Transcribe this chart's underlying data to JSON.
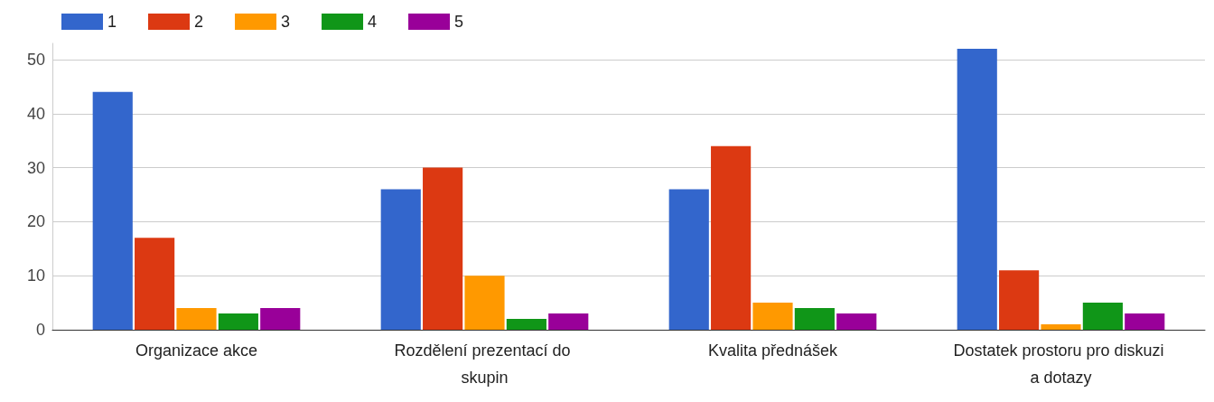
{
  "chart_data": {
    "type": "bar",
    "categories": [
      "Organizace akce",
      "Rozdělení prezentací do skupin",
      "Kvalita přednášek",
      "Dostatek prostoru pro diskuzi a dotazy"
    ],
    "series": [
      {
        "name": "1",
        "color": "#3366cc",
        "values": [
          44,
          26,
          26,
          52
        ]
      },
      {
        "name": "2",
        "color": "#dc3912",
        "values": [
          17,
          30,
          34,
          11
        ]
      },
      {
        "name": "3",
        "color": "#ff9900",
        "values": [
          4,
          10,
          5,
          1
        ]
      },
      {
        "name": "4",
        "color": "#109618",
        "values": [
          3,
          2,
          4,
          5
        ]
      },
      {
        "name": "5",
        "color": "#990099",
        "values": [
          4,
          3,
          3,
          3
        ]
      }
    ],
    "ylim": [
      0,
      53
    ],
    "yticks": [
      0,
      10,
      20,
      30,
      40,
      50
    ],
    "grid": "y",
    "legend": "top left"
  }
}
